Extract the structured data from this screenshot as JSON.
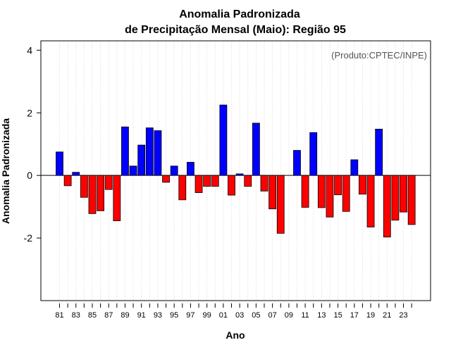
{
  "chart_data": {
    "type": "bar",
    "title_line1": "Anomalia Padronizada",
    "title_line2": "de Precipitação Mensal (Maio): Região 95",
    "xlabel": "Ano",
    "ylabel": "Anomalia Padronizada",
    "credit": "(Produto:CPTEC/INPE)",
    "ylim": [
      -4.0,
      4.3
    ],
    "yticks": [
      -2,
      0,
      2,
      4
    ],
    "ytick_labels": [
      "-2",
      "0",
      "2",
      "4"
    ],
    "categories": [
      "81",
      "82",
      "83",
      "84",
      "85",
      "86",
      "87",
      "88",
      "89",
      "90",
      "91",
      "92",
      "93",
      "94",
      "95",
      "96",
      "97",
      "98",
      "99",
      "00",
      "01",
      "02",
      "03",
      "04",
      "05",
      "06",
      "07",
      "08",
      "09",
      "10",
      "11",
      "12",
      "13",
      "14",
      "15",
      "16",
      "17",
      "18",
      "19",
      "20",
      "21",
      "22",
      "23",
      "24"
    ],
    "xtick_labels": [
      "81",
      "",
      "83",
      "",
      "85",
      "",
      "87",
      "",
      "89",
      "",
      "91",
      "",
      "93",
      "",
      "95",
      "",
      "97",
      "",
      "99",
      "",
      "01",
      "",
      "03",
      "",
      "05",
      "",
      "07",
      "",
      "09",
      "",
      "11",
      "",
      "13",
      "",
      "15",
      "",
      "17",
      "",
      "19",
      "",
      "21",
      "",
      "23",
      ""
    ],
    "values": [
      0.75,
      -0.33,
      0.1,
      -0.7,
      -1.22,
      -1.13,
      -0.45,
      -1.45,
      1.55,
      0.3,
      0.97,
      1.52,
      1.43,
      -0.22,
      0.3,
      -0.78,
      0.42,
      -0.55,
      -0.35,
      -0.35,
      2.25,
      -0.63,
      0.05,
      -0.35,
      1.67,
      -0.5,
      -1.07,
      -1.85,
      0.0,
      0.8,
      -1.02,
      1.37,
      -1.03,
      -1.33,
      -0.62,
      -1.15,
      0.5,
      -0.6,
      -1.65,
      1.48,
      -1.97,
      -1.43,
      -1.17,
      -1.57
    ],
    "positive_color": "#0000ff",
    "negative_color": "#ff0000",
    "grid": "vertical-dotted"
  }
}
